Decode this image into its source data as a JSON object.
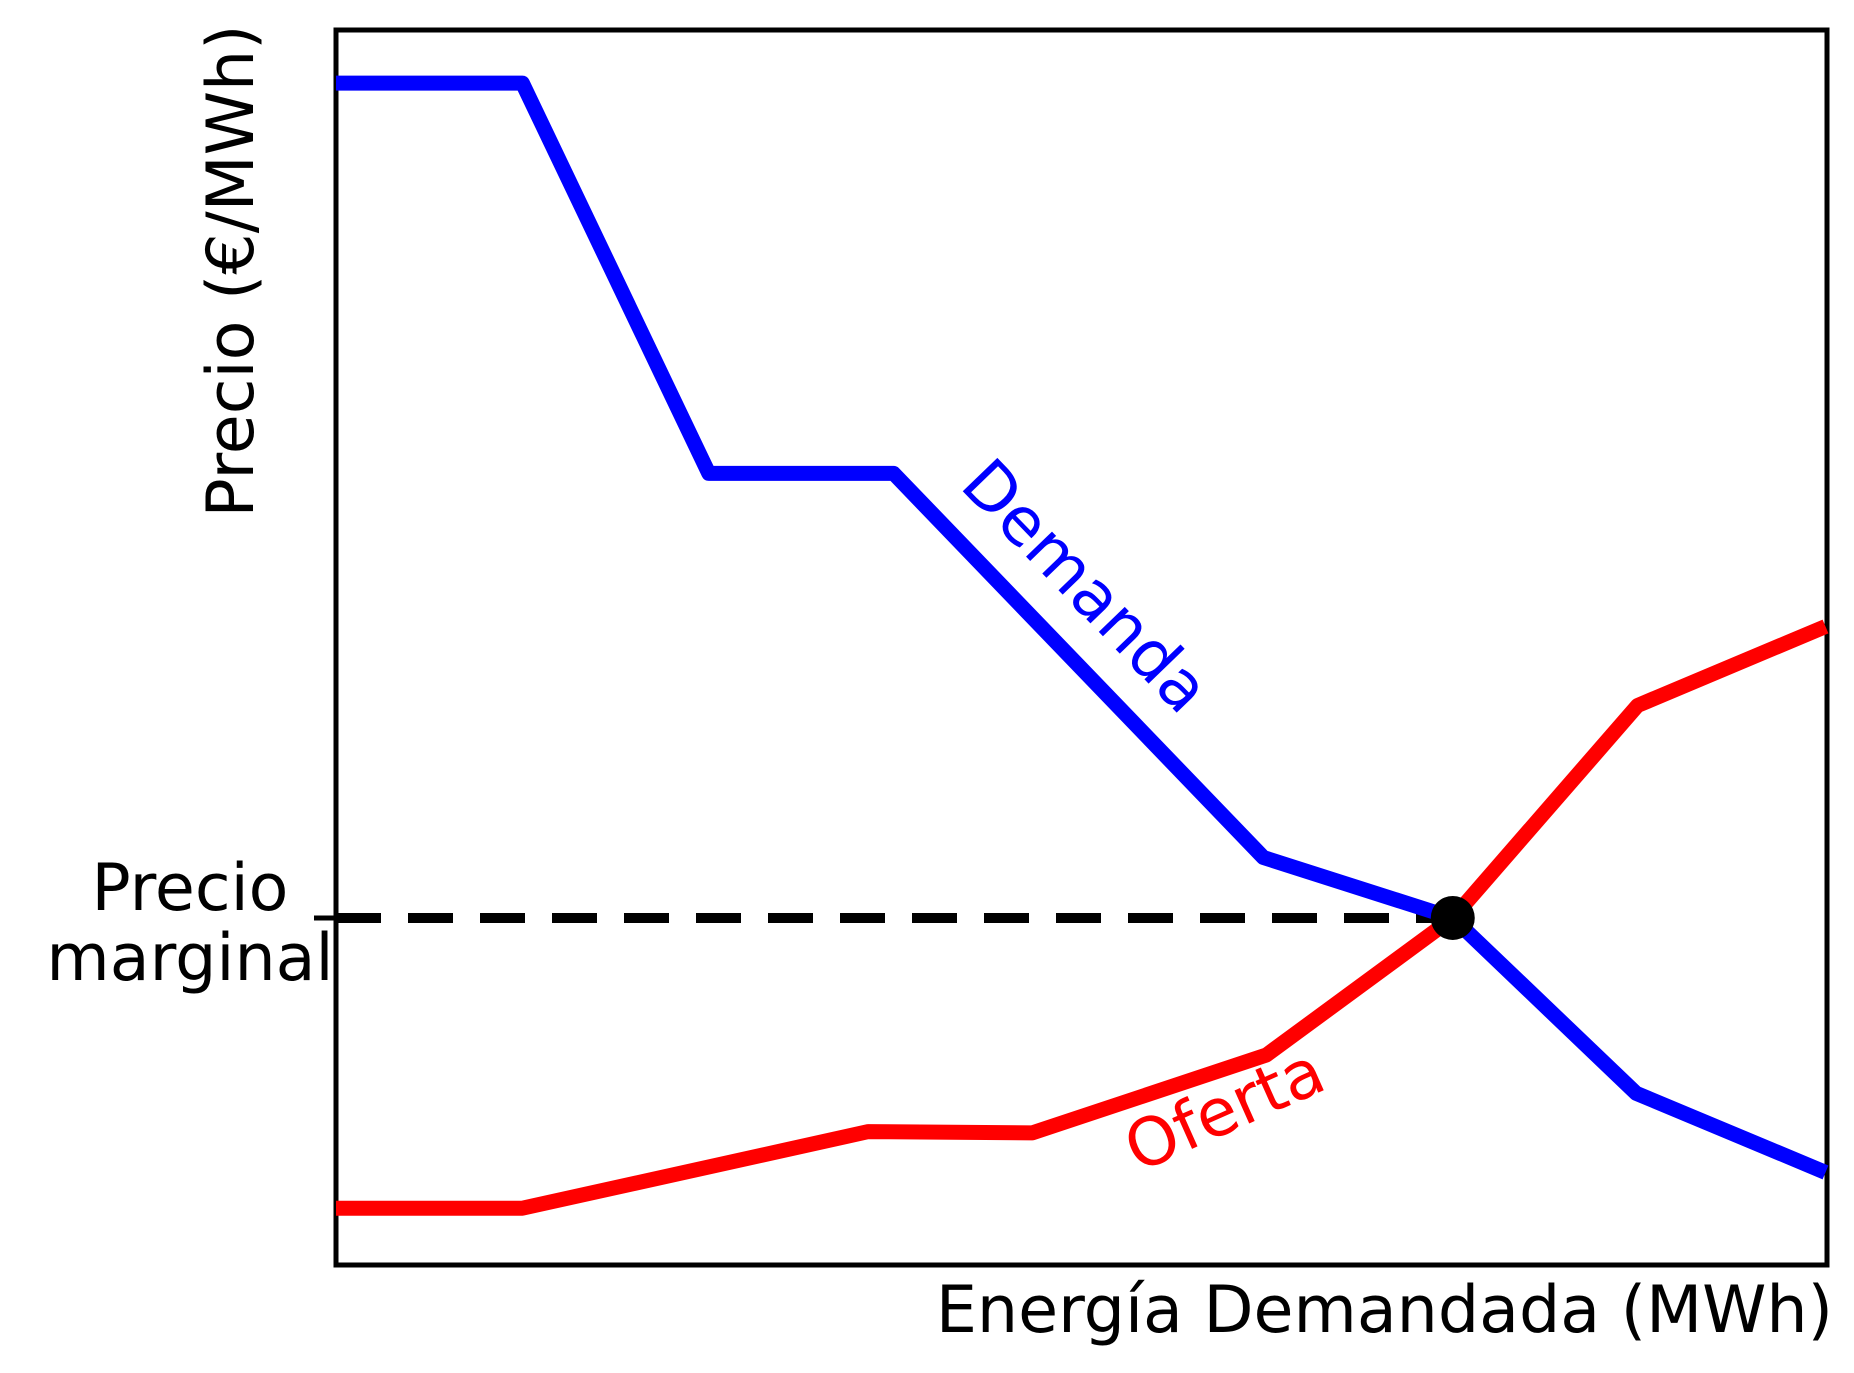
{
  "page": {
    "background": "#ffffff"
  },
  "chart_data": {
    "type": "line",
    "title": "",
    "xlabel": "Energía Demandada (MWh)",
    "ylabel": "Precio (€/MWh)",
    "xlim": [
      0,
      100
    ],
    "ylim": [
      0,
      100
    ],
    "grid": false,
    "legend": "none (inline rotated curve labels)",
    "axis_ticks": "none",
    "axis_color": "#000000",
    "text_color": "#000000",
    "series": [
      {
        "name": "Demanda",
        "color": "#0000ff",
        "shape": "stepped decreasing demand curve",
        "points": [
          [
            0.0,
            95.7
          ],
          [
            12.5,
            95.7
          ],
          [
            25.0,
            64.1
          ],
          [
            37.4,
            64.1
          ],
          [
            62.2,
            33.0
          ],
          [
            74.9,
            28.1
          ],
          [
            87.2,
            13.9
          ],
          [
            99.9,
            7.5
          ]
        ]
      },
      {
        "name": "Oferta",
        "color": "#ff0000",
        "shape": "stepped increasing supply curve",
        "points": [
          [
            0.0,
            4.6
          ],
          [
            12.5,
            4.6
          ],
          [
            35.7,
            10.8
          ],
          [
            46.7,
            10.7
          ],
          [
            62.4,
            17.0
          ],
          [
            74.9,
            28.1
          ],
          [
            87.3,
            45.3
          ],
          [
            99.9,
            51.7
          ]
        ]
      }
    ],
    "equilibrium": {
      "x": 74.9,
      "y": 28.1,
      "marker": "filled black dot at supply/demand intersection",
      "marker_color": "#000000",
      "label_lines": [
        "Precio",
        "marginal"
      ],
      "guide": "horizontal black dashed line from y-axis to the intersection point, with a tick on the y-axis"
    },
    "curve_labels": [
      {
        "text": "Demanda",
        "color": "#0000ff",
        "x": 49.2,
        "y": 53.7,
        "rotation_deg": 46
      },
      {
        "text": "Oferta",
        "color": "#ff0000",
        "x": 60.2,
        "y": 10.9,
        "rotation_deg": -24
      }
    ]
  }
}
